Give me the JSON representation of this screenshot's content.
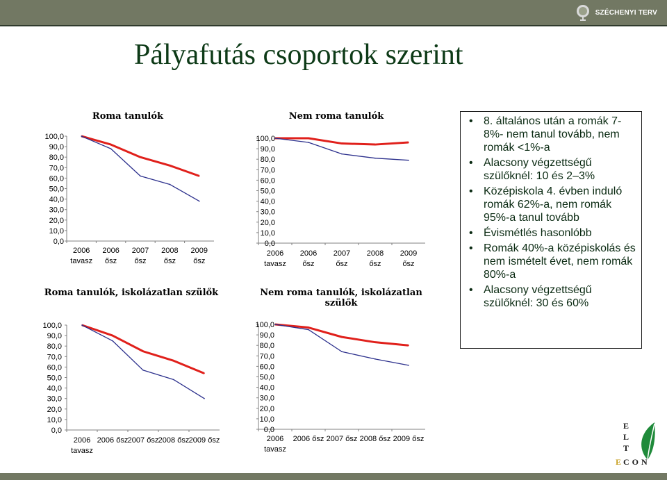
{
  "header": {
    "brand_label": "SZÉCHENYI TERV"
  },
  "slide": {
    "title": "Pályafutás csoportok szerint",
    "bullets": [
      "8. általános után a romák 7-8%- nem tanul tovább, nem romák <1%-a",
      "Alacsony végzettségű szülőknél: 10 és 2–3%",
      "Középiskola 4. évben induló romák 62%-a, nem romák 95%-a tanul tovább",
      "Évismétlés hasonlóbb",
      "Romák 40%-a középiskolás és nem ismételt évet, nem romák 80%-a",
      "Alacsony végzettségű szülőknél: 30 és 60%"
    ],
    "logo": {
      "letters": [
        "E",
        "L",
        "T",
        "E"
      ],
      "suffix": "CON"
    }
  },
  "chart_data": [
    {
      "type": "line",
      "title": "Roma tanulók",
      "categories": [
        [
          "2006",
          "tavasz"
        ],
        [
          "2006",
          "ősz"
        ],
        [
          "2007",
          "ősz"
        ],
        [
          "2008",
          "ősz"
        ],
        [
          "2009",
          "ősz"
        ]
      ],
      "y_ticks": [
        "100,0",
        "90,0",
        "80,0",
        "70,0",
        "60,0",
        "50,0",
        "40,0",
        "30,0",
        "20,0",
        "10,0",
        "0,0"
      ],
      "ylim": [
        0,
        100
      ],
      "series": [
        {
          "color": "#e0201b",
          "values": [
            100,
            92,
            80,
            72,
            62
          ]
        },
        {
          "color": "#2b2f8c",
          "values": [
            100,
            88,
            62,
            54,
            38
          ]
        }
      ]
    },
    {
      "type": "line",
      "title": "Nem roma tanulók",
      "categories": [
        [
          "2006",
          "tavasz"
        ],
        [
          "2006",
          "ősz"
        ],
        [
          "2007",
          "ősz"
        ],
        [
          "2008",
          "ősz"
        ],
        [
          "2009",
          "ősz"
        ]
      ],
      "y_ticks": [
        "100,0",
        "90,0",
        "80,0",
        "70,0",
        "60,0",
        "50,0",
        "40,0",
        "30,0",
        "20,0",
        "10,0",
        "0,0"
      ],
      "ylim": [
        0,
        100
      ],
      "series": [
        {
          "color": "#e0201b",
          "values": [
            100,
            100,
            95,
            94,
            96
          ]
        },
        {
          "color": "#2b2f8c",
          "values": [
            100,
            96,
            85,
            81,
            79
          ]
        }
      ]
    },
    {
      "type": "line",
      "title": "Roma tanulók, iskolázatlan szülők",
      "categories": [
        [
          "2006",
          "tavasz"
        ],
        [
          "2006 ősz"
        ],
        [
          "2007 ősz"
        ],
        [
          "2008 ősz"
        ],
        [
          "2009 ősz"
        ]
      ],
      "y_ticks": [
        "100,0",
        "90,0",
        "80,0",
        "70,0",
        "60,0",
        "50,0",
        "40,0",
        "30,0",
        "20,0",
        "10,0",
        "0,0"
      ],
      "ylim": [
        0,
        100
      ],
      "series": [
        {
          "color": "#e0201b",
          "values": [
            100,
            90,
            75,
            66,
            54
          ]
        },
        {
          "color": "#2b2f8c",
          "values": [
            100,
            85,
            57,
            48,
            30
          ]
        }
      ]
    },
    {
      "type": "line",
      "title": "Nem roma tanulók, iskolázatlan szülők",
      "categories": [
        [
          "2006",
          "tavasz"
        ],
        [
          "2006 ősz"
        ],
        [
          "2007 ősz"
        ],
        [
          "2008 ősz"
        ],
        [
          "2009 ősz"
        ]
      ],
      "y_ticks": [
        "100,0",
        "90,0",
        "80,0",
        "70,0",
        "60,0",
        "50,0",
        "40,0",
        "30,0",
        "20,0",
        "10,0",
        "0,0"
      ],
      "ylim": [
        0,
        100
      ],
      "series": [
        {
          "color": "#e0201b",
          "values": [
            100,
            97,
            88,
            83,
            80
          ]
        },
        {
          "color": "#2b2f8c",
          "values": [
            100,
            95,
            74,
            67,
            61
          ]
        }
      ]
    }
  ]
}
